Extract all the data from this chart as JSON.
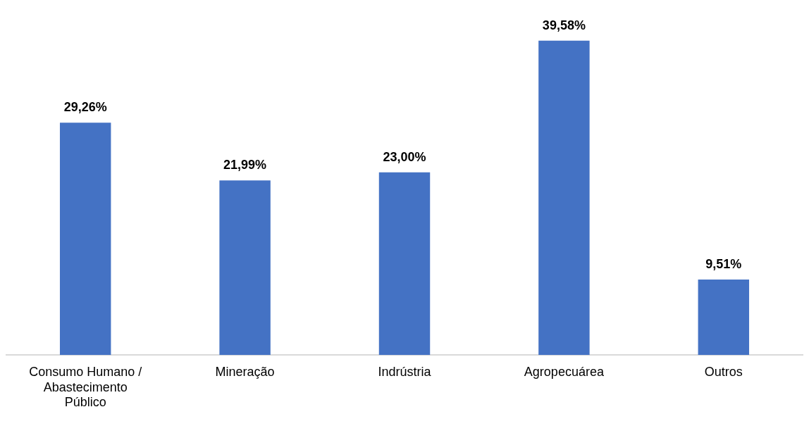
{
  "chart_data": {
    "type": "bar",
    "categories": [
      "Consumo Humano / Abastecimento Público",
      "Mineração",
      "Indrústria",
      "Agropecuárea",
      "Outros"
    ],
    "values": [
      29.26,
      21.99,
      23.0,
      39.58,
      9.51
    ],
    "value_labels": [
      "29,26%",
      "21,99%",
      "23,00%",
      "39,58%",
      "9,51%"
    ],
    "color": "#4472c4",
    "grid": false,
    "legend": false
  }
}
